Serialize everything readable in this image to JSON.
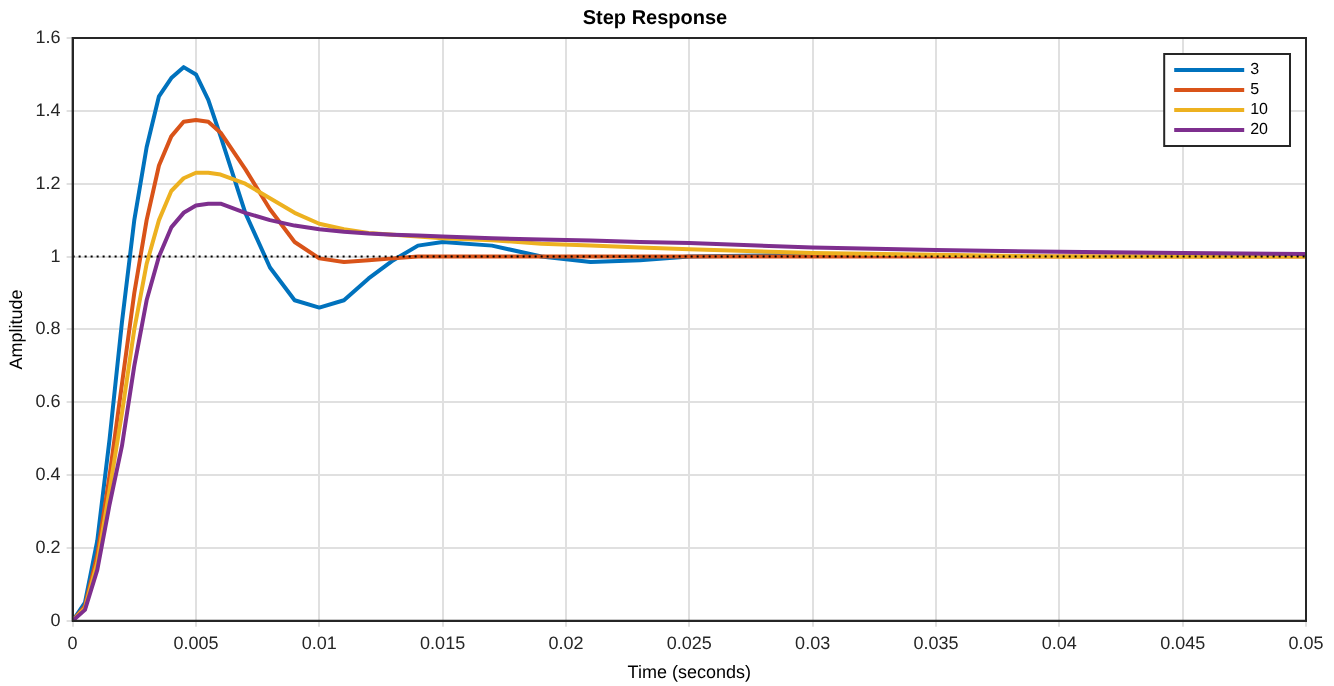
{
  "chart_data": {
    "type": "line",
    "title": "Step Response",
    "xlabel": "Time (seconds)",
    "ylabel": "Amplitude",
    "x": [
      0,
      0.0005,
      0.001,
      0.0015,
      0.002,
      0.0025,
      0.003,
      0.0035,
      0.004,
      0.0045,
      0.005,
      0.0055,
      0.006,
      0.007,
      0.008,
      0.009,
      0.01,
      0.011,
      0.012,
      0.013,
      0.014,
      0.015,
      0.017,
      0.019,
      0.021,
      0.023,
      0.025,
      0.03,
      0.035,
      0.04,
      0.045,
      0.05
    ],
    "series": [
      {
        "name": "3",
        "color": "#0072bd",
        "values": [
          0,
          0.05,
          0.22,
          0.5,
          0.82,
          1.1,
          1.3,
          1.44,
          1.49,
          1.52,
          1.5,
          1.43,
          1.33,
          1.12,
          0.97,
          0.88,
          0.86,
          0.88,
          0.94,
          0.99,
          1.03,
          1.04,
          1.03,
          1.0,
          0.985,
          0.99,
          1.0,
          1.005,
          null,
          null,
          null,
          null
        ]
      },
      {
        "name": "5",
        "color": "#d95319",
        "values": [
          0,
          0.04,
          0.18,
          0.4,
          0.65,
          0.9,
          1.1,
          1.25,
          1.33,
          1.37,
          1.375,
          1.37,
          1.34,
          1.24,
          1.13,
          1.04,
          0.995,
          0.985,
          0.99,
          0.995,
          1.0,
          1.0,
          1.0,
          1.0,
          1.0,
          1.0,
          1.0,
          1.0,
          1.0,
          1.0,
          1.0,
          1.0
        ]
      },
      {
        "name": "10",
        "color": "#edb120",
        "values": [
          0,
          0.035,
          0.16,
          0.36,
          0.57,
          0.8,
          0.98,
          1.1,
          1.18,
          1.215,
          1.23,
          1.23,
          1.225,
          1.2,
          1.16,
          1.12,
          1.09,
          1.075,
          1.065,
          1.06,
          1.055,
          1.05,
          1.045,
          1.035,
          1.03,
          1.025,
          1.02,
          1.01,
          1.005,
          1.0,
          1.0,
          1.0
        ]
      },
      {
        "name": "20",
        "color": "#7e2f8e",
        "values": [
          0,
          0.03,
          0.14,
          0.32,
          0.48,
          0.7,
          0.88,
          1.0,
          1.08,
          1.12,
          1.14,
          1.145,
          1.145,
          1.12,
          1.1,
          1.085,
          1.075,
          1.068,
          1.063,
          1.06,
          1.058,
          1.055,
          1.05,
          1.047,
          1.044,
          1.04,
          1.037,
          1.025,
          1.018,
          1.013,
          1.01,
          1.007
        ]
      }
    ],
    "xlim": [
      0,
      0.05
    ],
    "xticks": [
      0,
      0.005,
      0.01,
      0.015,
      0.02,
      0.025,
      0.03,
      0.035,
      0.04,
      0.045,
      0.05
    ],
    "ylim": [
      0,
      1.6
    ],
    "yticks": [
      0,
      0.2,
      0.4,
      0.6,
      0.8,
      1,
      1.2,
      1.4,
      1.6
    ],
    "ref_lines": [
      {
        "axis": "y",
        "value": 1,
        "color": "#000000",
        "line_style": "dotted"
      }
    ],
    "grid": true,
    "legend": "top right",
    "marker": "none",
    "line_style": "solid"
  }
}
